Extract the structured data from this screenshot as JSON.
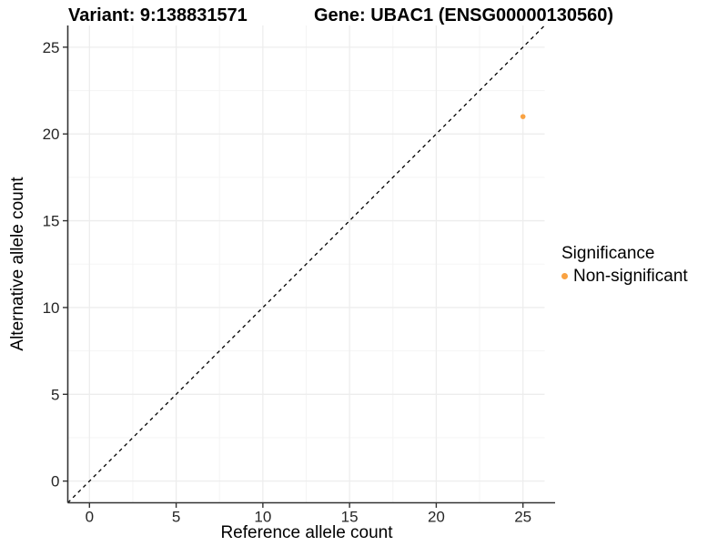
{
  "figure": {
    "title_left": "Variant: 9:138831571",
    "title_right": "Gene: UBAC1 (ENSG00000130560)"
  },
  "chart_data": {
    "type": "scatter",
    "title": "Variant: 9:138831571 / Gene: UBAC1 (ENSG00000130560)",
    "xlabel": "Reference allele count",
    "ylabel": "Alternative allele count",
    "xlim": [
      -1.25,
      26.25
    ],
    "ylim": [
      -1.25,
      26.25
    ],
    "xticks": [
      0,
      5,
      10,
      15,
      20,
      25
    ],
    "yticks": [
      0,
      5,
      10,
      15,
      20,
      25
    ],
    "minor_ticks": [
      2.5,
      7.5,
      12.5,
      17.5,
      22.5
    ],
    "grid": true,
    "identity_line": {
      "slope": 1,
      "intercept": 0,
      "style": "dashed",
      "color": "#000000"
    },
    "series": [
      {
        "name": "Non-significant",
        "color": "#F9A242",
        "points": [
          {
            "x": 25,
            "y": 21
          }
        ]
      }
    ],
    "legend": {
      "title": "Significance",
      "position": "right",
      "items": [
        {
          "label": "Non-significant",
          "color": "#F9A242"
        }
      ]
    },
    "style": {
      "axis_line_color": "#333333",
      "tick_label_color": "#262626",
      "grid_major_color": "#EDEDED",
      "grid_minor_color": "#F5F5F5",
      "background": "#FFFFFF"
    }
  }
}
